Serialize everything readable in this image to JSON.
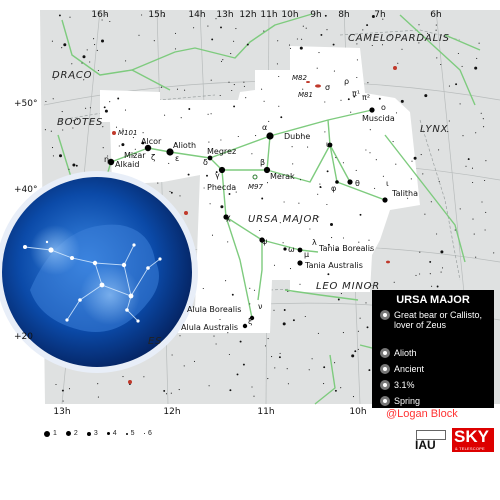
{
  "map": {
    "constellation_labels": [
      "CAMELOPARDALIS",
      "DRACO",
      "BOOTES",
      "LYNX",
      "URSA MAJOR",
      "LEO MINOR",
      "ES"
    ],
    "ra_top": [
      "16h",
      "15h",
      "14h",
      "13h",
      "12h",
      "11h",
      "10h",
      "9h",
      "8h",
      "7h",
      "6h"
    ],
    "ra_bottom": [
      "13h",
      "12h",
      "11h",
      "10h"
    ],
    "dec_labels": [
      "+50°",
      "+40°",
      "+20"
    ],
    "stars": [
      {
        "label": "Dubhe",
        "note": "α"
      },
      {
        "label": "Merak",
        "note": "β"
      },
      {
        "label": "Phecda",
        "note": "γ"
      },
      {
        "label": "Megrez",
        "note": "δ"
      },
      {
        "label": "Alioth",
        "note": "ε"
      },
      {
        "label": "Mizar",
        "note": "ζ"
      },
      {
        "label": "Alkaid",
        "note": "η"
      },
      {
        "label": "Alcor",
        "note": ""
      },
      {
        "label": "Muscida",
        "note": "ο"
      },
      {
        "label": "Talitha",
        "note": "ι"
      },
      {
        "label": "Tania Borealis",
        "note": "λ"
      },
      {
        "label": "Tania Australis",
        "note": "μ"
      },
      {
        "label": "Alula Borealis",
        "note": "ν"
      },
      {
        "label": "Alula Australis",
        "note": "ξ"
      }
    ],
    "greek_labels": [
      "θ",
      "φ",
      "υ",
      "ψ",
      "ω",
      "χ",
      "σ",
      "ρ",
      "π¹",
      "π²"
    ],
    "deep_sky": [
      "M81",
      "M82",
      "M97",
      "M101"
    ]
  },
  "infobox": {
    "title": "URSA MAJOR",
    "meaning": "Great bear or Callisto, lover of Zeus",
    "brightest": "Alioth",
    "origin": "Ancient",
    "area": "3.1%",
    "season": "Spring"
  },
  "credit": "@Logan Block",
  "logos": {
    "iau": "IAU",
    "sky_big": "SKY",
    "sky_small": "& TELESCOPE"
  },
  "legend": [
    "1",
    "2",
    "3",
    "4",
    "5",
    "6"
  ],
  "colors": {
    "figure_line": "#7ecb7e",
    "sky": "#dfe1e1",
    "highlight": "#ffffff",
    "globe": "#0b4aa8"
  }
}
